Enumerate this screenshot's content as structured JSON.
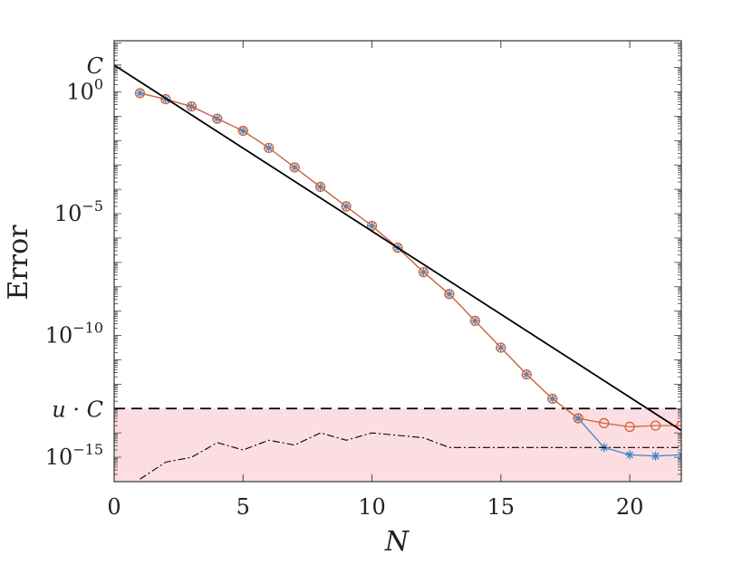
{
  "chart_data": {
    "type": "line",
    "title": "",
    "xlabel": "N",
    "ylabel": "Error",
    "xlim": [
      0,
      22
    ],
    "ylim_log10": [
      -16,
      2.1
    ],
    "y_scale": "log",
    "grid": false,
    "legend": "none",
    "x_ticks": [
      0,
      5,
      10,
      15,
      20
    ],
    "y_ticks": [
      {
        "exp": 0,
        "base": "10",
        "sup": "0"
      },
      {
        "exp": -5,
        "base": "10",
        "sup": "−5"
      },
      {
        "exp": -10,
        "base": "10",
        "sup": "−10"
      },
      {
        "exp": -15,
        "base": "10",
        "sup": "−15"
      }
    ],
    "C_label": "C",
    "C_log10": 1.1,
    "uC_label": "u · C",
    "uC_log10": -13.0,
    "shade_color": "#fcdde2",
    "series": [
      {
        "style": "star",
        "color": "#3a86c8",
        "x": [
          1,
          2,
          3,
          4,
          5,
          6,
          7,
          8,
          9,
          10,
          11,
          12,
          13,
          14,
          15,
          16,
          17,
          18,
          19,
          20,
          21,
          22
        ],
        "y_log10": [
          -0.05,
          -0.3,
          -0.6,
          -1.1,
          -1.6,
          -2.3,
          -3.1,
          -3.9,
          -4.7,
          -5.5,
          -6.4,
          -7.4,
          -8.3,
          -9.4,
          -10.5,
          -11.6,
          -12.6,
          -13.4,
          -14.6,
          -14.9,
          -14.95,
          -14.9
        ]
      },
      {
        "style": "circle",
        "color": "#d9633a",
        "x": [
          1,
          2,
          3,
          4,
          5,
          6,
          7,
          8,
          9,
          10,
          11,
          12,
          13,
          14,
          15,
          16,
          17,
          18,
          19,
          20,
          21,
          22
        ],
        "y_log10": [
          -0.05,
          -0.3,
          -0.6,
          -1.1,
          -1.6,
          -2.3,
          -3.1,
          -3.9,
          -4.7,
          -5.5,
          -6.4,
          -7.4,
          -8.3,
          -9.4,
          -10.5,
          -11.6,
          -12.6,
          -13.4,
          -13.6,
          -13.75,
          -13.7,
          -13.7
        ]
      },
      {
        "style": "dash-dot",
        "color": "#000000",
        "x": [
          1,
          2,
          3,
          4,
          5,
          6,
          7,
          8,
          9,
          10,
          11,
          12,
          13,
          14,
          15,
          16,
          17,
          18,
          19,
          20,
          21,
          22
        ],
        "y_log10": [
          -15.9,
          -15.2,
          -15.0,
          -14.4,
          -14.7,
          -14.3,
          -14.5,
          -14.0,
          -14.3,
          -14.0,
          -14.1,
          -14.2,
          -14.6,
          -14.6,
          -14.6,
          -14.6,
          -14.6,
          -14.6,
          -14.6,
          -14.6,
          -14.6,
          -14.6
        ]
      },
      {
        "style": "solid",
        "color": "#000000",
        "x": [
          0,
          22
        ],
        "y_log10": [
          1.1,
          -13.9
        ]
      }
    ]
  }
}
